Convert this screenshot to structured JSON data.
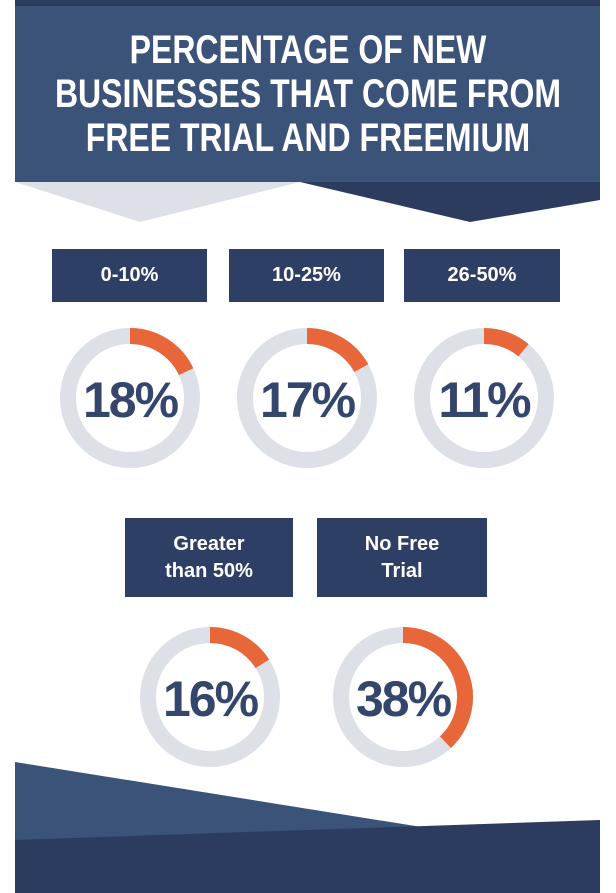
{
  "chart_data": {
    "type": "donut",
    "title": "PERCENTAGE OF NEW\nBUSINESSES THAT COME FROM\nFREE TRIAL AND FREEMIUM",
    "categories": [
      "0-10%",
      "10-25%",
      "26-50%",
      "Greater\nthan 50%",
      "No Free\nTrial"
    ],
    "values": [
      18,
      17,
      11,
      16,
      38
    ],
    "value_labels": [
      "18%",
      "17%",
      "11%",
      "16%",
      "38%"
    ],
    "color": "#e8673a"
  }
}
